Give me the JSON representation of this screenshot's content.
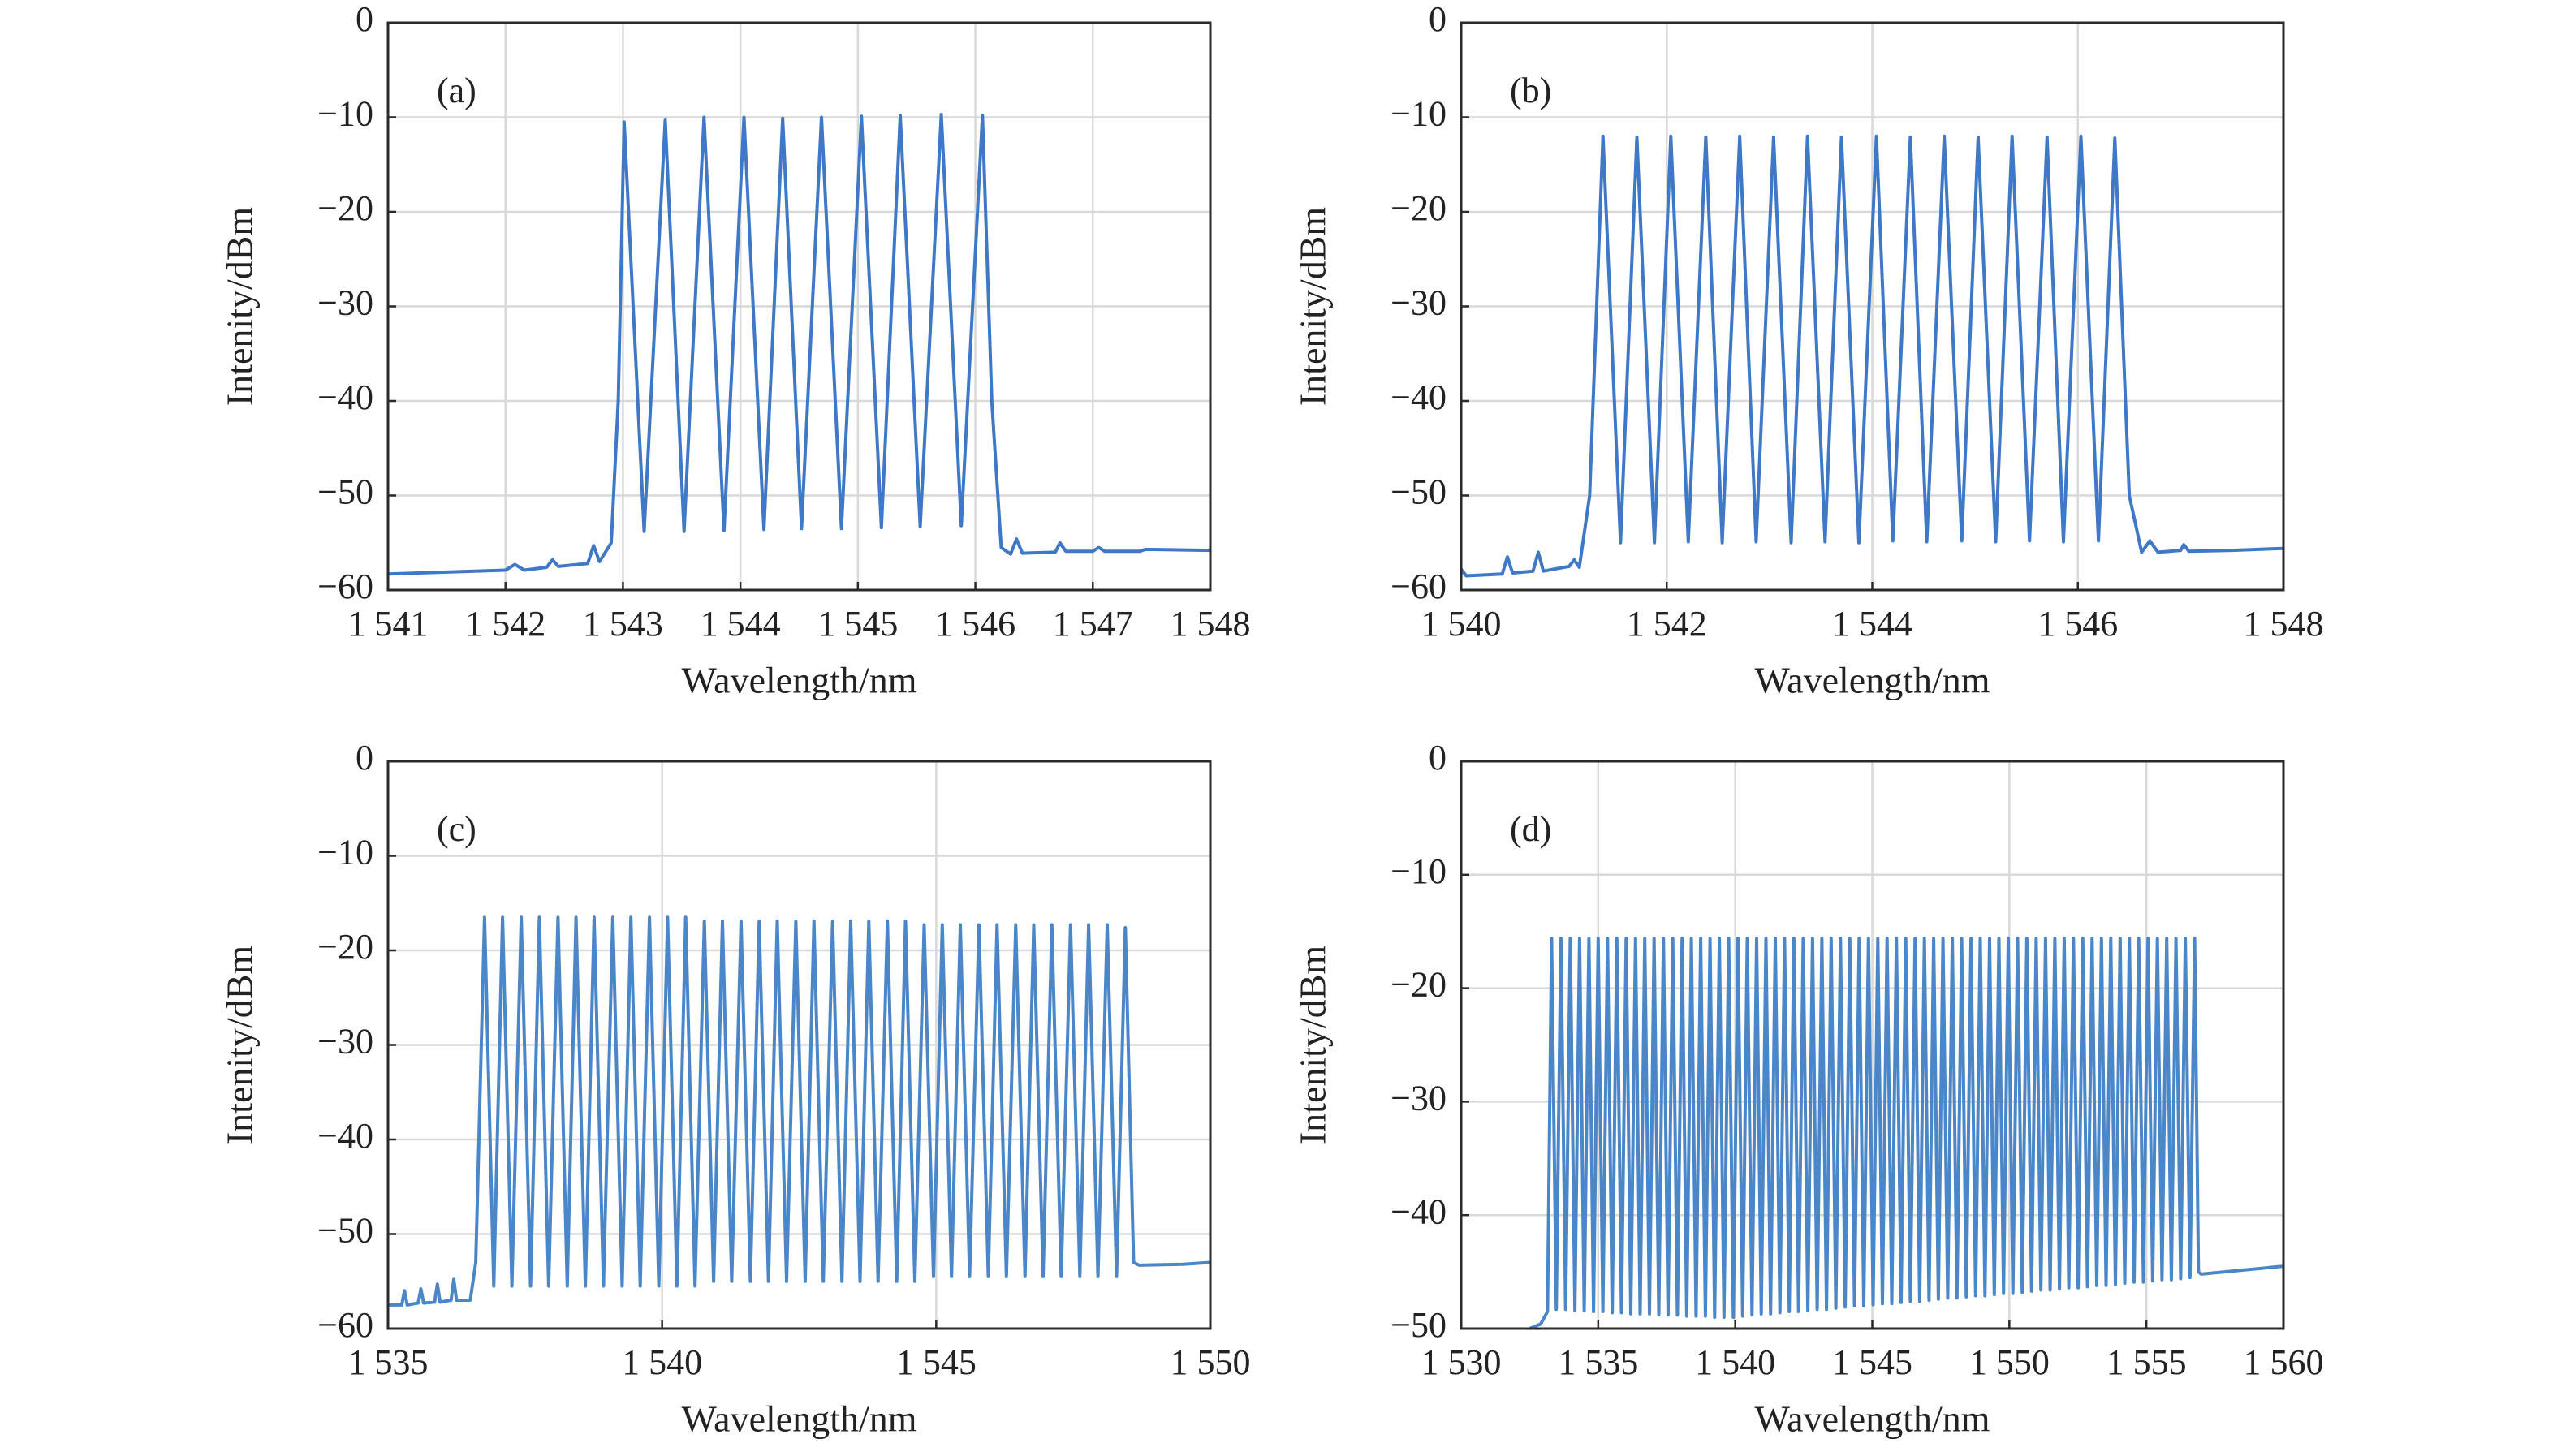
{
  "chart_data": [
    {
      "type": "line",
      "label": "(a)",
      "xlabel": "Wavelength/nm",
      "ylabel": "Intenity/dBm",
      "grid": true,
      "color": "#3f78c6",
      "xlim": [
        1541,
        1548
      ],
      "ylim": [
        -60,
        0
      ],
      "xticks": [
        {
          "value": 1541,
          "label": "1 541"
        },
        {
          "value": 1542,
          "label": "1 542"
        },
        {
          "value": 1543,
          "label": "1 543"
        },
        {
          "value": 1544,
          "label": "1 544"
        },
        {
          "value": 1545,
          "label": "1 545"
        },
        {
          "value": 1546,
          "label": "1 546"
        },
        {
          "value": 1547,
          "label": "1 547"
        },
        {
          "value": 1548,
          "label": "1 548"
        }
      ],
      "yticks": [
        0,
        {
          "value": -10,
          "label": "−10"
        },
        {
          "value": -20,
          "label": "−20"
        },
        {
          "value": -30,
          "label": "−30"
        },
        {
          "value": -40,
          "label": "−40"
        },
        {
          "value": -50,
          "label": "−50"
        },
        {
          "value": -60,
          "label": "−60"
        }
      ],
      "x": [
        1541,
        1541.5,
        1542.0,
        1542.08,
        1542.16,
        1542.35,
        1542.4,
        1542.45,
        1542.7,
        1542.75,
        1542.8,
        1542.9,
        1542.96,
        1543.01,
        1543.18,
        1543.36,
        1543.52,
        1543.69,
        1543.86,
        1544.03,
        1544.2,
        1544.36,
        1544.52,
        1544.69,
        1544.86,
        1545.03,
        1545.2,
        1545.36,
        1545.53,
        1545.71,
        1545.88,
        1546.06,
        1546.14,
        1546.22,
        1546.3,
        1546.35,
        1546.4,
        1546.68,
        1546.72,
        1546.77,
        1547.0,
        1547.05,
        1547.1,
        1547.4,
        1547.45,
        1548
      ],
      "values": [
        -58.3,
        -58.1,
        -57.9,
        -57.3,
        -57.9,
        -57.6,
        -56.8,
        -57.5,
        -57.2,
        -55.3,
        -57.0,
        -55,
        -40,
        -10.5,
        -53.8,
        -10.3,
        -53.8,
        -10.0,
        -53.7,
        -10.0,
        -53.6,
        -10.1,
        -53.5,
        -10.0,
        -53.5,
        -9.9,
        -53.4,
        -9.8,
        -53.3,
        -9.7,
        -53.2,
        -9.8,
        -40,
        -55.5,
        -56.2,
        -54.6,
        -56.1,
        -56,
        -55,
        -55.9,
        -55.9,
        -55.5,
        -55.9,
        -55.9,
        -55.7,
        -55.8
      ]
    },
    {
      "type": "line",
      "label": "(b)",
      "xlabel": "Wavelength/nm",
      "ylabel": "Intenity/dBm",
      "grid": true,
      "color": "#3f78c6",
      "xlim": [
        1540,
        1548
      ],
      "ylim": [
        -60,
        0
      ],
      "xticks": [
        {
          "value": 1540,
          "label": "1 540"
        },
        {
          "value": 1542,
          "label": "1 542"
        },
        {
          "value": 1544,
          "label": "1 544"
        },
        {
          "value": 1546,
          "label": "1 546"
        },
        {
          "value": 1548,
          "label": "1 548"
        }
      ],
      "yticks": [
        0,
        {
          "value": -10,
          "label": "−10"
        },
        {
          "value": -20,
          "label": "−20"
        },
        {
          "value": -30,
          "label": "−30"
        },
        {
          "value": -40,
          "label": "−40"
        },
        {
          "value": -50,
          "label": "−50"
        },
        {
          "value": -60,
          "label": "−60"
        }
      ],
      "x": [
        1540,
        1540.05,
        1540.4,
        1540.45,
        1540.5,
        1540.7,
        1540.75,
        1540.8,
        1541.05,
        1541.1,
        1541.15,
        1541.25,
        1541.38,
        1541.55,
        1541.71,
        1541.88,
        1542.04,
        1542.21,
        1542.38,
        1542.54,
        1542.71,
        1542.87,
        1543.04,
        1543.21,
        1543.37,
        1543.54,
        1543.7,
        1543.87,
        1544.04,
        1544.2,
        1544.37,
        1544.53,
        1544.7,
        1544.87,
        1545.03,
        1545.2,
        1545.36,
        1545.53,
        1545.7,
        1545.86,
        1546.03,
        1546.2,
        1546.36,
        1546.5,
        1546.62,
        1546.7,
        1546.78,
        1547.0,
        1547.03,
        1547.08,
        1547.5,
        1548
      ],
      "values": [
        -57.8,
        -58.5,
        -58.3,
        -56.5,
        -58.2,
        -58.0,
        -56,
        -58,
        -57.5,
        -56.8,
        -57.6,
        -50,
        -12.0,
        -55.0,
        -12.1,
        -55.0,
        -12.0,
        -54.9,
        -12.1,
        -55.0,
        -12.0,
        -54.9,
        -12.1,
        -55.0,
        -12.0,
        -54.9,
        -12.1,
        -55.0,
        -12.0,
        -54.8,
        -12.1,
        -54.9,
        -12.0,
        -54.8,
        -12.1,
        -54.9,
        -12.0,
        -54.8,
        -12.1,
        -54.9,
        -12.0,
        -54.8,
        -12.2,
        -50,
        -56,
        -54.8,
        -56,
        -55.8,
        -55.2,
        -55.9,
        -55.8,
        -55.6
      ]
    },
    {
      "type": "line",
      "label": "(c)",
      "xlabel": "Wavelength/nm",
      "ylabel": "Intenity/dBm",
      "grid": true,
      "color": "#4a86c8",
      "xlim": [
        1535,
        1550
      ],
      "ylim": [
        -60,
        0
      ],
      "xticks": [
        {
          "value": 1535,
          "label": "1 535"
        },
        {
          "value": 1540,
          "label": "1 540"
        },
        {
          "value": 1545,
          "label": "1 545"
        },
        {
          "value": 1550,
          "label": "1 550"
        }
      ],
      "yticks": [
        0,
        {
          "value": -10,
          "label": "−10"
        },
        {
          "value": -20,
          "label": "−20"
        },
        {
          "value": -30,
          "label": "−30"
        },
        {
          "value": -40,
          "label": "−40"
        },
        {
          "value": -50,
          "label": "−50"
        },
        {
          "value": -60,
          "label": "−60"
        }
      ],
      "x": [
        1535,
        1535.25,
        1535.3,
        1535.35,
        1535.55,
        1535.6,
        1535.65,
        1535.85,
        1535.9,
        1535.95,
        1536.15,
        1536.2,
        1536.25,
        1536.5,
        1536.6,
        1536.76,
        1536.93,
        1537.09,
        1537.26,
        1537.43,
        1537.6,
        1537.76,
        1537.93,
        1538.1,
        1538.27,
        1538.43,
        1538.6,
        1538.76,
        1538.93,
        1539.1,
        1539.27,
        1539.43,
        1539.6,
        1539.77,
        1539.94,
        1540.1,
        1540.27,
        1540.43,
        1540.6,
        1540.77,
        1540.94,
        1541.1,
        1541.27,
        1541.44,
        1541.61,
        1541.77,
        1541.94,
        1542.1,
        1542.27,
        1542.44,
        1542.61,
        1542.77,
        1542.94,
        1543.11,
        1543.28,
        1543.44,
        1543.61,
        1543.77,
        1543.94,
        1544.11,
        1544.28,
        1544.44,
        1544.61,
        1544.78,
        1544.95,
        1545.11,
        1545.28,
        1545.44,
        1545.61,
        1545.78,
        1545.95,
        1546.11,
        1546.28,
        1546.45,
        1546.62,
        1546.78,
        1546.95,
        1547.11,
        1547.28,
        1547.45,
        1547.62,
        1547.78,
        1547.95,
        1548.12,
        1548.29,
        1548.45,
        1548.6,
        1548.7,
        1549.5,
        1550
      ],
      "values": [
        -57.5,
        -57.5,
        -56,
        -57.5,
        -57.3,
        -55.8,
        -57.3,
        -57.2,
        -55.3,
        -57.2,
        -57,
        -54.8,
        -57,
        -57,
        -53,
        -16.5,
        -55.5,
        -16.5,
        -55.5,
        -16.5,
        -55.5,
        -16.5,
        -55.5,
        -16.5,
        -55.5,
        -16.5,
        -55.5,
        -16.5,
        -55.5,
        -16.5,
        -55.5,
        -16.5,
        -55.5,
        -16.5,
        -55.5,
        -16.5,
        -55.5,
        -16.5,
        -55.5,
        -16.9,
        -55.0,
        -16.9,
        -55.0,
        -16.9,
        -55.0,
        -16.9,
        -55.0,
        -16.9,
        -55.0,
        -16.9,
        -55.0,
        -16.9,
        -55.0,
        -16.9,
        -55.0,
        -16.9,
        -55.0,
        -16.9,
        -55.0,
        -16.9,
        -55.0,
        -16.9,
        -55.0,
        -17.3,
        -54.5,
        -17.3,
        -54.5,
        -17.3,
        -54.5,
        -17.3,
        -54.5,
        -17.3,
        -54.5,
        -17.3,
        -54.5,
        -17.3,
        -54.5,
        -17.3,
        -54.5,
        -17.3,
        -54.5,
        -17.3,
        -54.5,
        -17.3,
        -54.5,
        -17.6,
        -53,
        -53.3,
        -53.2,
        -53.0
      ]
    },
    {
      "type": "line",
      "label": "(d)",
      "xlabel": "Wavelength/nm",
      "ylabel": "Intenity/dBm",
      "grid": true,
      "color": "#4a86c8",
      "xlim": [
        1530,
        1560
      ],
      "ylim": [
        -50,
        0
      ],
      "xticks": [
        {
          "value": 1530,
          "label": "1 530"
        },
        {
          "value": 1535,
          "label": "1 535"
        },
        {
          "value": 1540,
          "label": "1 540"
        },
        {
          "value": 1545,
          "label": "1 545"
        },
        {
          "value": 1550,
          "label": "1 550"
        },
        {
          "value": 1555,
          "label": "1 555"
        },
        {
          "value": 1560,
          "label": "1 560"
        }
      ],
      "yticks": [
        0,
        {
          "value": -10,
          "label": "−10"
        },
        {
          "value": -20,
          "label": "−20"
        },
        {
          "value": -30,
          "label": "−30"
        },
        {
          "value": -40,
          "label": "−40"
        },
        {
          "value": -50,
          "label": "−50"
        }
      ],
      "x": [
        1532.5,
        1532.9,
        1533.15,
        1533.3,
        1533.47,
        1533.64,
        1533.81,
        1533.98,
        1534.15,
        1534.32,
        1534.49,
        1534.66,
        1534.83,
        1535.0,
        1535.17,
        1535.34,
        1535.51,
        1535.68,
        1535.85,
        1536.02,
        1536.19,
        1536.36,
        1536.53,
        1536.7,
        1536.87,
        1537.04,
        1537.21,
        1537.38,
        1537.55,
        1537.72,
        1537.89,
        1538.06,
        1538.23,
        1538.4,
        1538.57,
        1538.74,
        1538.91,
        1539.08,
        1539.25,
        1539.42,
        1539.59,
        1539.76,
        1539.93,
        1540.1,
        1540.27,
        1540.44,
        1540.61,
        1540.78,
        1540.95,
        1541.12,
        1541.29,
        1541.46,
        1541.63,
        1541.8,
        1541.97,
        1542.14,
        1542.31,
        1542.48,
        1542.65,
        1542.82,
        1542.99,
        1543.16,
        1543.33,
        1543.5,
        1543.67,
        1543.84,
        1544.01,
        1544.18,
        1544.35,
        1544.52,
        1544.69,
        1544.86,
        1545.03,
        1545.2,
        1545.37,
        1545.54,
        1545.71,
        1545.88,
        1546.05,
        1546.22,
        1546.39,
        1546.56,
        1546.73,
        1546.9,
        1547.07,
        1547.24,
        1547.41,
        1547.58,
        1547.75,
        1547.92,
        1548.09,
        1548.26,
        1548.43,
        1548.6,
        1548.77,
        1548.94,
        1549.11,
        1549.28,
        1549.45,
        1549.62,
        1549.79,
        1549.96,
        1550.13,
        1550.3,
        1550.47,
        1550.64,
        1550.81,
        1550.98,
        1551.15,
        1551.32,
        1551.49,
        1551.66,
        1551.83,
        1552.0,
        1552.17,
        1552.34,
        1552.51,
        1552.68,
        1552.85,
        1553.02,
        1553.19,
        1553.36,
        1553.53,
        1553.7,
        1553.87,
        1554.04,
        1554.21,
        1554.38,
        1554.55,
        1554.72,
        1554.89,
        1555.06,
        1555.23,
        1555.4,
        1555.57,
        1555.74,
        1555.91,
        1556.08,
        1556.25,
        1556.42,
        1556.59,
        1556.76,
        1556.9,
        1557,
        1560
      ],
      "values": [
        -50,
        -49.6,
        -48.5,
        -15.6,
        -48.3,
        -15.6,
        -48.3,
        -15.6,
        -48.4,
        -15.6,
        -48.4,
        -15.6,
        -48.5,
        -15.6,
        -48.5,
        -15.6,
        -48.6,
        -15.6,
        -48.6,
        -15.6,
        -48.7,
        -15.6,
        -48.7,
        -15.6,
        -48.7,
        -15.6,
        -48.8,
        -15.6,
        -48.8,
        -15.6,
        -48.8,
        -15.6,
        -48.9,
        -15.6,
        -48.9,
        -15.6,
        -48.9,
        -15.6,
        -49.0,
        -15.6,
        -49.0,
        -15.6,
        -49.0,
        -15.6,
        -48.9,
        -15.6,
        -48.8,
        -15.6,
        -48.7,
        -15.6,
        -48.7,
        -15.6,
        -48.6,
        -15.6,
        -48.5,
        -15.6,
        -48.5,
        -15.6,
        -48.4,
        -15.6,
        -48.3,
        -15.6,
        -48.3,
        -15.6,
        -48.2,
        -15.6,
        -48.1,
        -15.6,
        -48.0,
        -15.6,
        -48.0,
        -15.6,
        -47.9,
        -15.6,
        -47.8,
        -15.6,
        -47.8,
        -15.6,
        -47.7,
        -15.6,
        -47.6,
        -15.6,
        -47.6,
        -15.6,
        -47.5,
        -15.6,
        -47.4,
        -15.6,
        -47.3,
        -15.6,
        -47.3,
        -15.6,
        -47.2,
        -15.6,
        -47.1,
        -15.6,
        -47.1,
        -15.6,
        -47.0,
        -15.6,
        -46.9,
        -15.6,
        -46.9,
        -15.6,
        -46.8,
        -15.6,
        -46.7,
        -15.6,
        -46.6,
        -15.6,
        -46.6,
        -15.6,
        -46.5,
        -15.6,
        -46.4,
        -15.6,
        -46.4,
        -15.6,
        -46.3,
        -15.6,
        -46.2,
        -15.6,
        -46.2,
        -15.6,
        -46.1,
        -15.6,
        -46.0,
        -15.6,
        -45.9,
        -15.6,
        -45.9,
        -15.6,
        -45.8,
        -15.6,
        -45.7,
        -15.6,
        -45.7,
        -15.6,
        -45.6,
        -15.6,
        -45.5,
        -15.6,
        -45,
        -45.2,
        -44.5
      ]
    }
  ]
}
